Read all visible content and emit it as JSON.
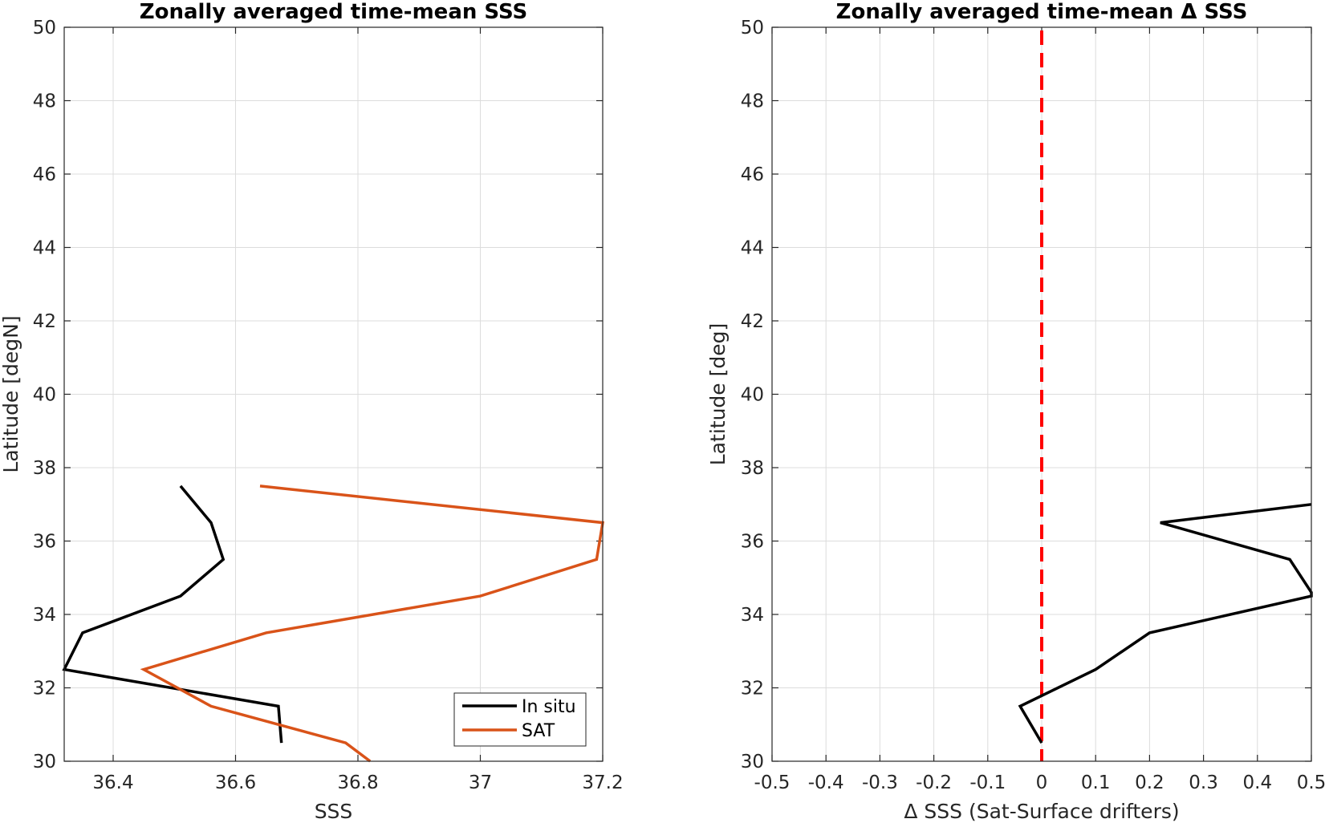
{
  "chart_data": [
    {
      "type": "line",
      "title": "Zonally averaged time-mean SSS",
      "xlabel": "SSS",
      "ylabel": "Latitude [degN]",
      "xlim": [
        36.32,
        37.2
      ],
      "ylim": [
        30,
        50
      ],
      "xticks": [
        36.4,
        36.6,
        36.8,
        37,
        37.2
      ],
      "xtick_labels": [
        "36.4",
        "36.6",
        "36.8",
        "37",
        "37.2"
      ],
      "yticks": [
        30,
        32,
        34,
        36,
        38,
        40,
        42,
        44,
        46,
        48,
        50
      ],
      "ytick_labels": [
        "30",
        "32",
        "34",
        "36",
        "38",
        "40",
        "42",
        "44",
        "46",
        "48",
        "50"
      ],
      "grid": true,
      "legend_position": "bottom-right",
      "series": [
        {
          "name": "In situ",
          "color": "#000000",
          "points": [
            {
              "x": 36.675,
              "y": 30.5
            },
            {
              "x": 36.67,
              "y": 31.5
            },
            {
              "x": 36.32,
              "y": 32.5
            },
            {
              "x": 36.35,
              "y": 33.5
            },
            {
              "x": 36.51,
              "y": 34.5
            },
            {
              "x": 36.58,
              "y": 35.5
            },
            {
              "x": 36.56,
              "y": 36.5
            },
            {
              "x": 36.51,
              "y": 37.5
            }
          ]
        },
        {
          "name": "SAT",
          "color": "#D95319",
          "points": [
            {
              "x": 36.82,
              "y": 30.0
            },
            {
              "x": 36.78,
              "y": 30.5
            },
            {
              "x": 36.56,
              "y": 31.5
            },
            {
              "x": 36.45,
              "y": 32.5
            },
            {
              "x": 36.65,
              "y": 33.5
            },
            {
              "x": 37.0,
              "y": 34.5
            },
            {
              "x": 37.19,
              "y": 35.5
            },
            {
              "x": 37.2,
              "y": 36.5
            },
            {
              "x": 36.64,
              "y": 37.5
            }
          ]
        }
      ]
    },
    {
      "type": "line",
      "title": "Zonally averaged time-mean Δ SSS",
      "xlabel": "Δ SSS (Sat-Surface drifters)",
      "ylabel": "Latitude [deg]",
      "xlim": [
        -0.5,
        0.5
      ],
      "ylim": [
        30,
        50
      ],
      "xticks": [
        -0.5,
        -0.4,
        -0.3,
        -0.2,
        -0.1,
        0,
        0.1,
        0.2,
        0.3,
        0.4,
        0.5
      ],
      "xtick_labels": [
        "-0.5",
        "-0.4",
        "-0.3",
        "-0.2",
        "-0.1",
        "0",
        "0.1",
        "0.2",
        "0.3",
        "0.4",
        "0.5"
      ],
      "yticks": [
        30,
        32,
        34,
        36,
        38,
        40,
        42,
        44,
        46,
        48,
        50
      ],
      "ytick_labels": [
        "30",
        "32",
        "34",
        "36",
        "38",
        "40",
        "42",
        "44",
        "46",
        "48",
        "50"
      ],
      "grid": true,
      "reference_line": {
        "x": 0,
        "color": "#FF0000",
        "style": "dashed"
      },
      "series": [
        {
          "color": "#000000",
          "points": [
            {
              "x": 0.0,
              "y": 30.5
            },
            {
              "x": -0.04,
              "y": 31.5
            },
            {
              "x": 0.1,
              "y": 32.5
            },
            {
              "x": 0.2,
              "y": 33.5
            },
            {
              "x": 0.5,
              "y": 34.5
            },
            {
              "x": 0.5,
              "y": 34.6
            },
            {
              "x": 0.46,
              "y": 35.5
            },
            {
              "x": 0.22,
              "y": 36.5
            },
            {
              "x": 0.5,
              "y": 37.0
            }
          ]
        }
      ]
    }
  ]
}
